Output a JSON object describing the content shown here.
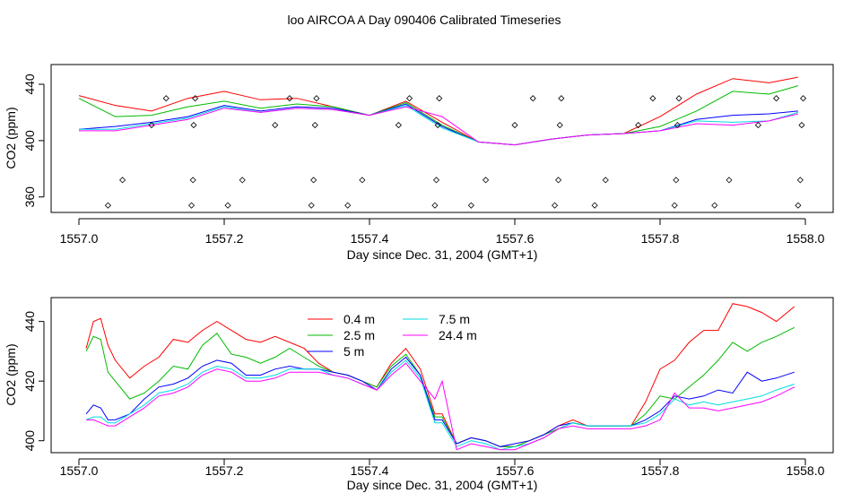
{
  "title": "loo AIRCOA A  Day 090406  Calibrated Timeseries",
  "chart_data": [
    {
      "type": "line",
      "xlabel": "Day since Dec. 31, 2004 (GMT+1)",
      "ylabel": "CO2 (ppm)",
      "xlim": [
        1557.0,
        1558.0
      ],
      "ylim": [
        349,
        454
      ],
      "xticks": [
        "1557.0",
        "1557.2",
        "1557.4",
        "1557.6",
        "1557.8",
        "1558.0"
      ],
      "yticks": [
        "360",
        "400",
        "440"
      ],
      "colors": [
        "#ff0000",
        "#00bb00",
        "#0000ff",
        "#00dddd",
        "#ff00ff"
      ],
      "x": [
        1557.0,
        1557.05,
        1557.1,
        1557.15,
        1557.2,
        1557.25,
        1557.3,
        1557.35,
        1557.4,
        1557.45,
        1557.5,
        1557.55,
        1557.6,
        1557.65,
        1557.7,
        1557.75,
        1557.8,
        1557.85,
        1557.9,
        1557.95,
        1557.99
      ],
      "series": [
        {
          "values": [
            432,
            425,
            421,
            430,
            435,
            429,
            430,
            424,
            418,
            428,
            413,
            399,
            397,
            401,
            404,
            405,
            417,
            433,
            444,
            441,
            445
          ]
        },
        {
          "values": [
            430,
            417,
            418,
            424,
            428,
            423,
            426,
            424,
            418,
            427,
            411,
            399,
            397,
            401,
            404,
            405,
            410,
            421,
            435,
            433,
            439
          ]
        },
        {
          "values": [
            408,
            410,
            413,
            417,
            425,
            421,
            424,
            423,
            418,
            426,
            410,
            399,
            397,
            401,
            404,
            405,
            407,
            415,
            418,
            419,
            421
          ]
        },
        {
          "values": [
            408,
            408,
            412,
            416,
            424,
            420,
            423,
            422,
            418,
            425,
            409,
            399,
            397,
            401,
            404,
            405,
            407,
            414,
            413,
            414,
            420
          ]
        },
        {
          "values": [
            407,
            407,
            411,
            415,
            423,
            420,
            423,
            422,
            418,
            424,
            417,
            399,
            397,
            401,
            404,
            405,
            407,
            412,
            411,
            414,
            419
          ]
        }
      ],
      "points": {
        "x": [
          1557.04,
          1557.06,
          1557.1,
          1557.12,
          1557.155,
          1557.157,
          1557.158,
          1557.16,
          1557.205,
          1557.225,
          1557.27,
          1557.29,
          1557.32,
          1557.323,
          1557.325,
          1557.327,
          1557.37,
          1557.39,
          1557.44,
          1557.455,
          1557.49,
          1557.492,
          1557.494,
          1557.496,
          1557.54,
          1557.56,
          1557.6,
          1557.625,
          1557.655,
          1557.66,
          1557.662,
          1557.664,
          1557.71,
          1557.725,
          1557.77,
          1557.79,
          1557.82,
          1557.822,
          1557.824,
          1557.826,
          1557.875,
          1557.895,
          1557.935,
          1557.96,
          1557.99,
          1557.993,
          1557.995,
          1557.997
        ],
        "y": [
          354,
          372,
          411,
          430,
          354,
          372,
          411,
          430,
          354,
          372,
          411,
          430,
          354,
          372,
          411,
          430,
          354,
          372,
          411,
          430,
          354,
          372,
          411,
          430,
          354,
          372,
          411,
          430,
          354,
          372,
          411,
          430,
          354,
          372,
          411,
          430,
          354,
          372,
          411,
          430,
          354,
          372,
          411,
          430,
          354,
          372,
          411,
          430
        ]
      }
    },
    {
      "type": "line",
      "xlabel": "Day since Dec. 31, 2004 (GMT+1)",
      "ylabel": "CO2 (ppm)",
      "xlim": [
        1557.0,
        1558.0
      ],
      "ylim": [
        396,
        448
      ],
      "xticks": [
        "1557.0",
        "1557.2",
        "1557.4",
        "1557.6",
        "1557.8",
        "1558.0"
      ],
      "yticks": [
        "400",
        "420",
        "440"
      ],
      "legend_position": "top-left",
      "x": [
        1557.01,
        1557.02,
        1557.03,
        1557.04,
        1557.05,
        1557.07,
        1557.09,
        1557.11,
        1557.13,
        1557.15,
        1557.17,
        1557.19,
        1557.21,
        1557.23,
        1557.25,
        1557.27,
        1557.29,
        1557.31,
        1557.33,
        1557.35,
        1557.37,
        1557.39,
        1557.41,
        1557.43,
        1557.45,
        1557.47,
        1557.49,
        1557.5,
        1557.52,
        1557.54,
        1557.56,
        1557.58,
        1557.6,
        1557.62,
        1557.64,
        1557.66,
        1557.68,
        1557.7,
        1557.72,
        1557.74,
        1557.76,
        1557.78,
        1557.8,
        1557.82,
        1557.84,
        1557.86,
        1557.88,
        1557.9,
        1557.92,
        1557.94,
        1557.96,
        1557.985
      ],
      "series": [
        {
          "name": "0.4 m",
          "color": "#ff0000",
          "values": [
            431,
            440,
            441,
            432,
            427,
            421,
            425,
            428,
            434,
            433,
            437,
            440,
            437,
            434,
            433,
            435,
            433,
            431,
            426,
            423,
            422,
            420,
            418,
            426,
            431,
            424,
            409,
            409,
            399,
            401,
            400,
            398,
            398,
            400,
            402,
            405,
            407,
            405,
            405,
            405,
            405,
            413,
            424,
            427,
            433,
            437,
            437,
            446,
            445,
            443,
            440,
            445
          ]
        },
        {
          "name": "2.5 m",
          "color": "#00bb00",
          "values": [
            430,
            435,
            434,
            423,
            420,
            414,
            416,
            420,
            425,
            424,
            432,
            436,
            429,
            428,
            426,
            428,
            431,
            428,
            425,
            423,
            422,
            420,
            418,
            425,
            429,
            422,
            408,
            408,
            399,
            401,
            400,
            398,
            398,
            400,
            402,
            404,
            406,
            405,
            405,
            405,
            405,
            409,
            415,
            414,
            418,
            422,
            427,
            433,
            430,
            433,
            435,
            438
          ]
        },
        {
          "name": "5 m",
          "color": "#0000ff",
          "values": [
            409,
            412,
            411,
            407,
            407,
            409,
            414,
            418,
            419,
            421,
            425,
            427,
            426,
            422,
            422,
            424,
            425,
            424,
            424,
            423,
            422,
            420,
            417,
            424,
            428,
            422,
            407,
            407,
            399,
            401,
            400,
            398,
            399,
            400,
            402,
            405,
            406,
            405,
            405,
            405,
            405,
            407,
            410,
            415,
            414,
            415,
            417,
            416,
            423,
            420,
            421,
            423
          ]
        },
        {
          "name": "7.5 m",
          "color": "#00dddd",
          "values": [
            407,
            408,
            408,
            406,
            406,
            409,
            412,
            416,
            417,
            419,
            423,
            425,
            424,
            421,
            421,
            422,
            424,
            424,
            424,
            422,
            421,
            419,
            417,
            423,
            427,
            421,
            406,
            406,
            398,
            400,
            399,
            397,
            398,
            399,
            401,
            404,
            406,
            405,
            405,
            405,
            405,
            406,
            409,
            414,
            412,
            413,
            412,
            413,
            414,
            415,
            417,
            419
          ]
        },
        {
          "name": "24.4 m",
          "color": "#ff00ff",
          "values": [
            407,
            407,
            406,
            405,
            405,
            408,
            411,
            415,
            416,
            418,
            422,
            424,
            423,
            420,
            420,
            421,
            423,
            423,
            423,
            422,
            421,
            419,
            417,
            422,
            426,
            420,
            414,
            420,
            397,
            399,
            398,
            397,
            397,
            399,
            401,
            404,
            405,
            404,
            404,
            404,
            404,
            405,
            407,
            416,
            411,
            411,
            410,
            411,
            412,
            413,
            415,
            418
          ]
        }
      ]
    }
  ]
}
